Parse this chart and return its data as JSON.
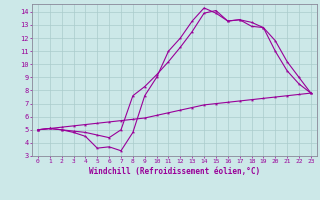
{
  "xlabel": "Windchill (Refroidissement éolien,°C)",
  "bg_color": "#cce8e8",
  "line_color": "#990099",
  "xlim": [
    -0.5,
    23.5
  ],
  "ylim": [
    3,
    14.6
  ],
  "xticks": [
    0,
    1,
    2,
    3,
    4,
    5,
    6,
    7,
    8,
    9,
    10,
    11,
    12,
    13,
    14,
    15,
    16,
    17,
    18,
    19,
    20,
    21,
    22,
    23
  ],
  "yticks": [
    3,
    4,
    5,
    6,
    7,
    8,
    9,
    10,
    11,
    12,
    13,
    14
  ],
  "curve1_x": [
    0,
    1,
    2,
    3,
    4,
    5,
    6,
    7,
    8,
    9,
    10,
    11,
    12,
    13,
    14,
    15,
    16,
    17,
    18,
    19,
    20,
    21,
    22,
    23
  ],
  "curve1_y": [
    5.0,
    5.1,
    5.0,
    4.8,
    4.5,
    3.6,
    3.7,
    3.4,
    4.8,
    7.6,
    9.0,
    11.0,
    12.0,
    13.3,
    14.3,
    13.9,
    13.3,
    13.4,
    12.9,
    12.8,
    11.0,
    9.5,
    8.5,
    7.8
  ],
  "curve2_x": [
    0,
    1,
    2,
    3,
    4,
    5,
    6,
    7,
    8,
    9,
    10,
    11,
    12,
    13,
    14,
    15,
    16,
    17,
    18,
    19,
    20,
    21,
    22,
    23
  ],
  "curve2_y": [
    5.0,
    5.1,
    5.0,
    4.9,
    4.8,
    4.6,
    4.4,
    5.0,
    7.6,
    8.3,
    9.2,
    10.2,
    11.3,
    12.5,
    13.9,
    14.1,
    13.3,
    13.4,
    13.2,
    12.8,
    11.8,
    10.2,
    9.0,
    7.8
  ],
  "curve3_x": [
    0,
    1,
    2,
    3,
    4,
    5,
    6,
    7,
    8,
    9,
    10,
    11,
    12,
    13,
    14,
    15,
    16,
    17,
    18,
    19,
    20,
    21,
    22,
    23
  ],
  "curve3_y": [
    5.0,
    5.1,
    5.2,
    5.3,
    5.4,
    5.5,
    5.6,
    5.7,
    5.8,
    5.9,
    6.1,
    6.3,
    6.5,
    6.7,
    6.9,
    7.0,
    7.1,
    7.2,
    7.3,
    7.4,
    7.5,
    7.6,
    7.7,
    7.8
  ],
  "grid_color": "#aacccc",
  "font_family": "monospace"
}
